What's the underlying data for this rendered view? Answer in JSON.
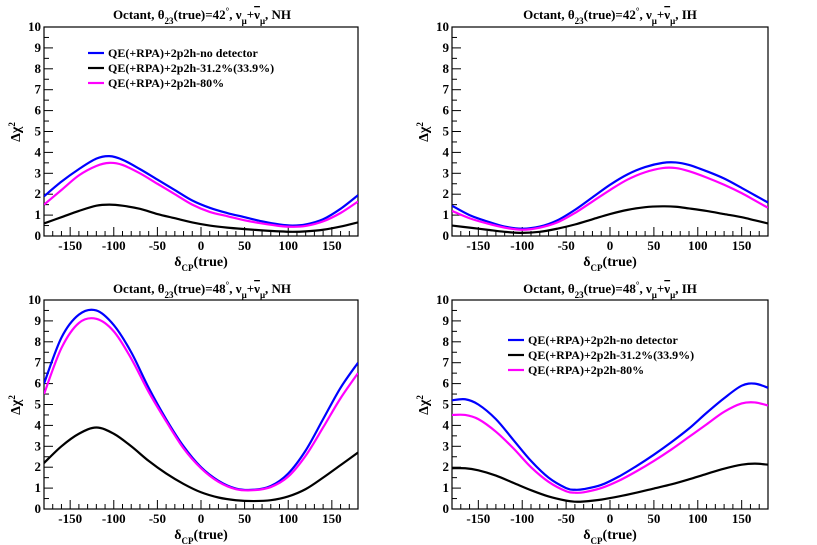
{
  "chart_data": [
    {
      "type": "line",
      "panel": "top-left",
      "title_parts": [
        "Octant,  θ",
        "23",
        "(true)=42",
        "°",
        ",  ν",
        "μ",
        "+",
        "ν",
        "μ",
        ", NH"
      ],
      "xlabel_parts": [
        "δ",
        "CP",
        "(true)"
      ],
      "ylabel_parts": [
        "Δχ",
        "2"
      ],
      "xlim": [
        -180,
        180
      ],
      "ylim": [
        0,
        10
      ],
      "xticks": [
        -150,
        -100,
        -50,
        0,
        50,
        100,
        150
      ],
      "yticks": [
        0,
        1,
        2,
        3,
        4,
        5,
        6,
        7,
        8,
        9,
        10
      ],
      "legend_position": "top-left",
      "series": [
        {
          "name": "QE(+RPA)+2p2h-no detector",
          "color": "#0000ff",
          "x": [
            -180,
            -160,
            -140,
            -120,
            -105,
            -90,
            -70,
            -50,
            -30,
            -10,
            10,
            30,
            50,
            70,
            90,
            105,
            120,
            140,
            160,
            180
          ],
          "y": [
            1.9,
            2.6,
            3.2,
            3.7,
            3.82,
            3.65,
            3.2,
            2.7,
            2.2,
            1.7,
            1.35,
            1.1,
            0.9,
            0.7,
            0.55,
            0.5,
            0.55,
            0.8,
            1.3,
            1.95
          ]
        },
        {
          "name": "QE(+RPA)+2p2h-31.2%(33.9%)",
          "color": "#000000",
          "x": [
            -180,
            -160,
            -140,
            -120,
            -105,
            -90,
            -70,
            -50,
            -30,
            -10,
            10,
            30,
            50,
            70,
            90,
            105,
            120,
            140,
            160,
            180
          ],
          "y": [
            0.6,
            0.9,
            1.2,
            1.45,
            1.5,
            1.45,
            1.3,
            1.05,
            0.85,
            0.65,
            0.5,
            0.4,
            0.33,
            0.27,
            0.22,
            0.2,
            0.22,
            0.3,
            0.45,
            0.65
          ]
        },
        {
          "name": "QE(+RPA)+2p2h-80%",
          "color": "#ff00ff",
          "x": [
            -180,
            -160,
            -140,
            -120,
            -105,
            -90,
            -70,
            -50,
            -30,
            -10,
            10,
            30,
            50,
            70,
            90,
            105,
            120,
            140,
            160,
            180
          ],
          "y": [
            1.5,
            2.2,
            2.9,
            3.35,
            3.5,
            3.4,
            3.0,
            2.5,
            2.0,
            1.5,
            1.15,
            0.95,
            0.75,
            0.6,
            0.48,
            0.44,
            0.48,
            0.7,
            1.1,
            1.65
          ]
        }
      ]
    },
    {
      "type": "line",
      "panel": "top-right",
      "title_parts": [
        "Octant,  θ",
        "23",
        "(true)=42",
        "°",
        ",  ν",
        "μ",
        "+",
        "ν",
        "μ",
        ", IH"
      ],
      "xlabel_parts": [
        "δ",
        "CP",
        "(true)"
      ],
      "ylabel_parts": [
        "Δχ",
        "2"
      ],
      "xlim": [
        -180,
        180
      ],
      "ylim": [
        0,
        10
      ],
      "xticks": [
        -150,
        -100,
        -50,
        0,
        50,
        100,
        150
      ],
      "yticks": [
        0,
        1,
        2,
        3,
        4,
        5,
        6,
        7,
        8,
        9,
        10
      ],
      "legend_position": "none",
      "series": [
        {
          "name": "QE(+RPA)+2p2h-no detector",
          "color": "#0000ff",
          "x": [
            -180,
            -160,
            -140,
            -120,
            -100,
            -80,
            -60,
            -40,
            -20,
            0,
            20,
            40,
            60,
            75,
            90,
            110,
            130,
            150,
            165,
            180
          ],
          "y": [
            1.45,
            1.0,
            0.7,
            0.45,
            0.35,
            0.45,
            0.75,
            1.25,
            1.85,
            2.45,
            2.95,
            3.3,
            3.5,
            3.52,
            3.4,
            3.1,
            2.75,
            2.3,
            1.95,
            1.6
          ]
        },
        {
          "name": "QE(+RPA)+2p2h-31.2%(33.9%)",
          "color": "#000000",
          "x": [
            -180,
            -160,
            -140,
            -120,
            -100,
            -80,
            -60,
            -40,
            -20,
            0,
            20,
            40,
            60,
            75,
            90,
            110,
            130,
            150,
            165,
            180
          ],
          "y": [
            0.5,
            0.4,
            0.3,
            0.2,
            0.15,
            0.2,
            0.35,
            0.55,
            0.8,
            1.05,
            1.25,
            1.38,
            1.42,
            1.4,
            1.32,
            1.2,
            1.05,
            0.9,
            0.75,
            0.6
          ]
        },
        {
          "name": "QE(+RPA)+2p2h-80%",
          "color": "#ff00ff",
          "x": [
            -180,
            -160,
            -140,
            -120,
            -100,
            -80,
            -60,
            -40,
            -20,
            0,
            20,
            40,
            60,
            75,
            90,
            110,
            130,
            150,
            165,
            180
          ],
          "y": [
            1.2,
            0.85,
            0.6,
            0.4,
            0.3,
            0.4,
            0.65,
            1.1,
            1.65,
            2.2,
            2.7,
            3.05,
            3.25,
            3.25,
            3.1,
            2.8,
            2.45,
            2.05,
            1.7,
            1.35
          ]
        }
      ]
    },
    {
      "type": "line",
      "panel": "bottom-left",
      "title_parts": [
        "Octant,  θ",
        "23",
        "(true)=48",
        "°",
        ",  ν",
        "μ",
        "+",
        "ν",
        "μ",
        ", NH"
      ],
      "xlabel_parts": [
        "δ",
        "CP",
        "(true)"
      ],
      "ylabel_parts": [
        "Δχ",
        "2"
      ],
      "xlim": [
        -180,
        180
      ],
      "ylim": [
        0,
        10
      ],
      "xticks": [
        -150,
        -100,
        -50,
        0,
        50,
        100,
        150
      ],
      "yticks": [
        0,
        1,
        2,
        3,
        4,
        5,
        6,
        7,
        8,
        9,
        10
      ],
      "legend_position": "none",
      "series": [
        {
          "name": "QE(+RPA)+2p2h-no detector",
          "color": "#0000ff",
          "x": [
            -180,
            -160,
            -140,
            -120,
            -100,
            -80,
            -60,
            -40,
            -20,
            0,
            20,
            40,
            60,
            80,
            100,
            120,
            140,
            160,
            180
          ],
          "y": [
            6.0,
            8.2,
            9.3,
            9.5,
            8.8,
            7.5,
            5.8,
            4.3,
            3.0,
            2.0,
            1.35,
            0.98,
            0.92,
            1.1,
            1.7,
            2.8,
            4.3,
            5.8,
            7.0
          ]
        },
        {
          "name": "QE(+RPA)+2p2h-31.2%(33.9%)",
          "color": "#000000",
          "x": [
            -180,
            -160,
            -140,
            -120,
            -100,
            -80,
            -60,
            -40,
            -20,
            0,
            20,
            40,
            60,
            80,
            100,
            120,
            140,
            160,
            180
          ],
          "y": [
            2.2,
            3.0,
            3.6,
            3.9,
            3.6,
            3.0,
            2.3,
            1.7,
            1.2,
            0.8,
            0.55,
            0.42,
            0.38,
            0.42,
            0.6,
            0.95,
            1.5,
            2.1,
            2.7
          ]
        },
        {
          "name": "QE(+RPA)+2p2h-80%",
          "color": "#ff00ff",
          "x": [
            -180,
            -160,
            -140,
            -120,
            -100,
            -80,
            -60,
            -40,
            -20,
            0,
            20,
            40,
            60,
            80,
            100,
            120,
            140,
            160,
            180
          ],
          "y": [
            5.5,
            7.7,
            8.9,
            9.1,
            8.5,
            7.2,
            5.6,
            4.2,
            2.9,
            1.95,
            1.3,
            0.95,
            0.9,
            1.05,
            1.55,
            2.55,
            3.9,
            5.3,
            6.5
          ]
        }
      ]
    },
    {
      "type": "line",
      "panel": "bottom-right",
      "title_parts": [
        "Octant,  θ",
        "23",
        "(true)=48",
        "°",
        ",  ν",
        "μ",
        "+",
        "ν",
        "μ",
        ", IH"
      ],
      "xlabel_parts": [
        "δ",
        "CP",
        "(true)"
      ],
      "ylabel_parts": [
        "Δχ",
        "2"
      ],
      "xlim": [
        -180,
        180
      ],
      "ylim": [
        0,
        10
      ],
      "xticks": [
        -150,
        -100,
        -50,
        0,
        50,
        100,
        150
      ],
      "yticks": [
        0,
        1,
        2,
        3,
        4,
        5,
        6,
        7,
        8,
        9,
        10
      ],
      "legend_position": "upper-center",
      "series": [
        {
          "name": "QE(+RPA)+2p2h-no detector",
          "color": "#0000ff",
          "x": [
            -180,
            -165,
            -150,
            -130,
            -110,
            -90,
            -70,
            -50,
            -40,
            -30,
            -10,
            10,
            30,
            50,
            70,
            90,
            110,
            130,
            150,
            165,
            180
          ],
          "y": [
            5.2,
            5.25,
            5.0,
            4.3,
            3.3,
            2.3,
            1.5,
            1.0,
            0.92,
            0.95,
            1.15,
            1.55,
            2.05,
            2.6,
            3.2,
            3.85,
            4.6,
            5.3,
            5.9,
            6.0,
            5.8
          ]
        },
        {
          "name": "QE(+RPA)+2p2h-31.2%(33.9%)",
          "color": "#000000",
          "x": [
            -180,
            -165,
            -150,
            -130,
            -110,
            -90,
            -70,
            -50,
            -40,
            -30,
            -10,
            10,
            30,
            50,
            70,
            90,
            110,
            130,
            150,
            165,
            180
          ],
          "y": [
            1.95,
            1.95,
            1.85,
            1.6,
            1.25,
            0.9,
            0.6,
            0.4,
            0.35,
            0.36,
            0.45,
            0.6,
            0.78,
            0.98,
            1.18,
            1.42,
            1.68,
            1.93,
            2.12,
            2.17,
            2.12
          ]
        },
        {
          "name": "QE(+RPA)+2p2h-80%",
          "color": "#ff00ff",
          "x": [
            -180,
            -165,
            -150,
            -130,
            -110,
            -90,
            -70,
            -50,
            -40,
            -30,
            -10,
            10,
            30,
            50,
            70,
            90,
            110,
            130,
            150,
            165,
            180
          ],
          "y": [
            4.5,
            4.5,
            4.3,
            3.7,
            2.9,
            2.0,
            1.3,
            0.85,
            0.78,
            0.8,
            1.0,
            1.35,
            1.8,
            2.3,
            2.85,
            3.45,
            4.05,
            4.65,
            5.05,
            5.1,
            4.95
          ]
        }
      ]
    }
  ]
}
